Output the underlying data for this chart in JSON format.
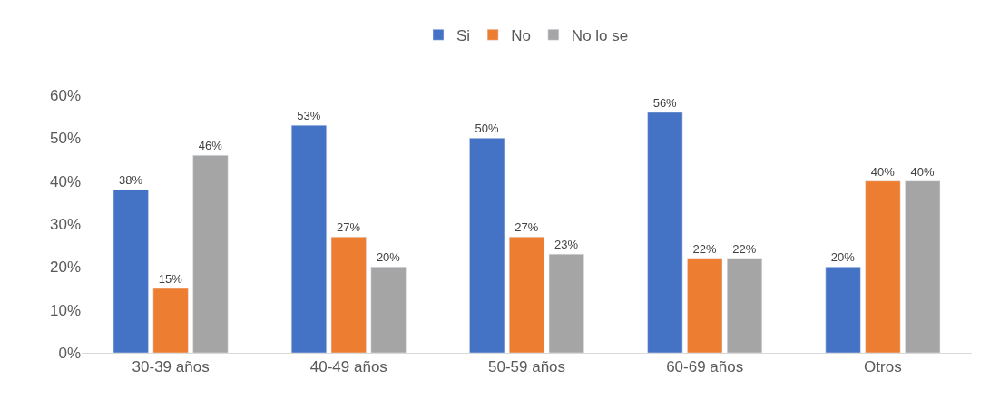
{
  "chart_data": {
    "type": "bar",
    "categories": [
      "30-39 años",
      "40-49 años",
      "50-59 años",
      "60-69 años",
      "Otros"
    ],
    "series": [
      {
        "name": "Si",
        "color": "#4472c4",
        "values": [
          38,
          53,
          50,
          56,
          20
        ],
        "value_labels": [
          "38%",
          "53%",
          "50%",
          "56%",
          "20%"
        ]
      },
      {
        "name": "No",
        "color": "#ed7d31",
        "values": [
          15,
          27,
          27,
          22,
          40
        ],
        "value_labels": [
          "15%",
          "27%",
          "27%",
          "22%",
          "40%"
        ]
      },
      {
        "name": "No lo se",
        "color": "#a5a5a5",
        "values": [
          46,
          20,
          23,
          22,
          40
        ],
        "value_labels": [
          "46%",
          "20%",
          "23%",
          "22%",
          "40%"
        ]
      }
    ],
    "ylim": [
      0,
      60
    ],
    "yticks": [
      {
        "value": 0,
        "label": "0%"
      },
      {
        "value": 10,
        "label": "10%"
      },
      {
        "value": 20,
        "label": "20%"
      },
      {
        "value": 30,
        "label": "30%"
      },
      {
        "value": 40,
        "label": "40%"
      },
      {
        "value": 50,
        "label": "50%"
      },
      {
        "value": 60,
        "label": "60%"
      }
    ],
    "grid": false,
    "legend": "top"
  }
}
